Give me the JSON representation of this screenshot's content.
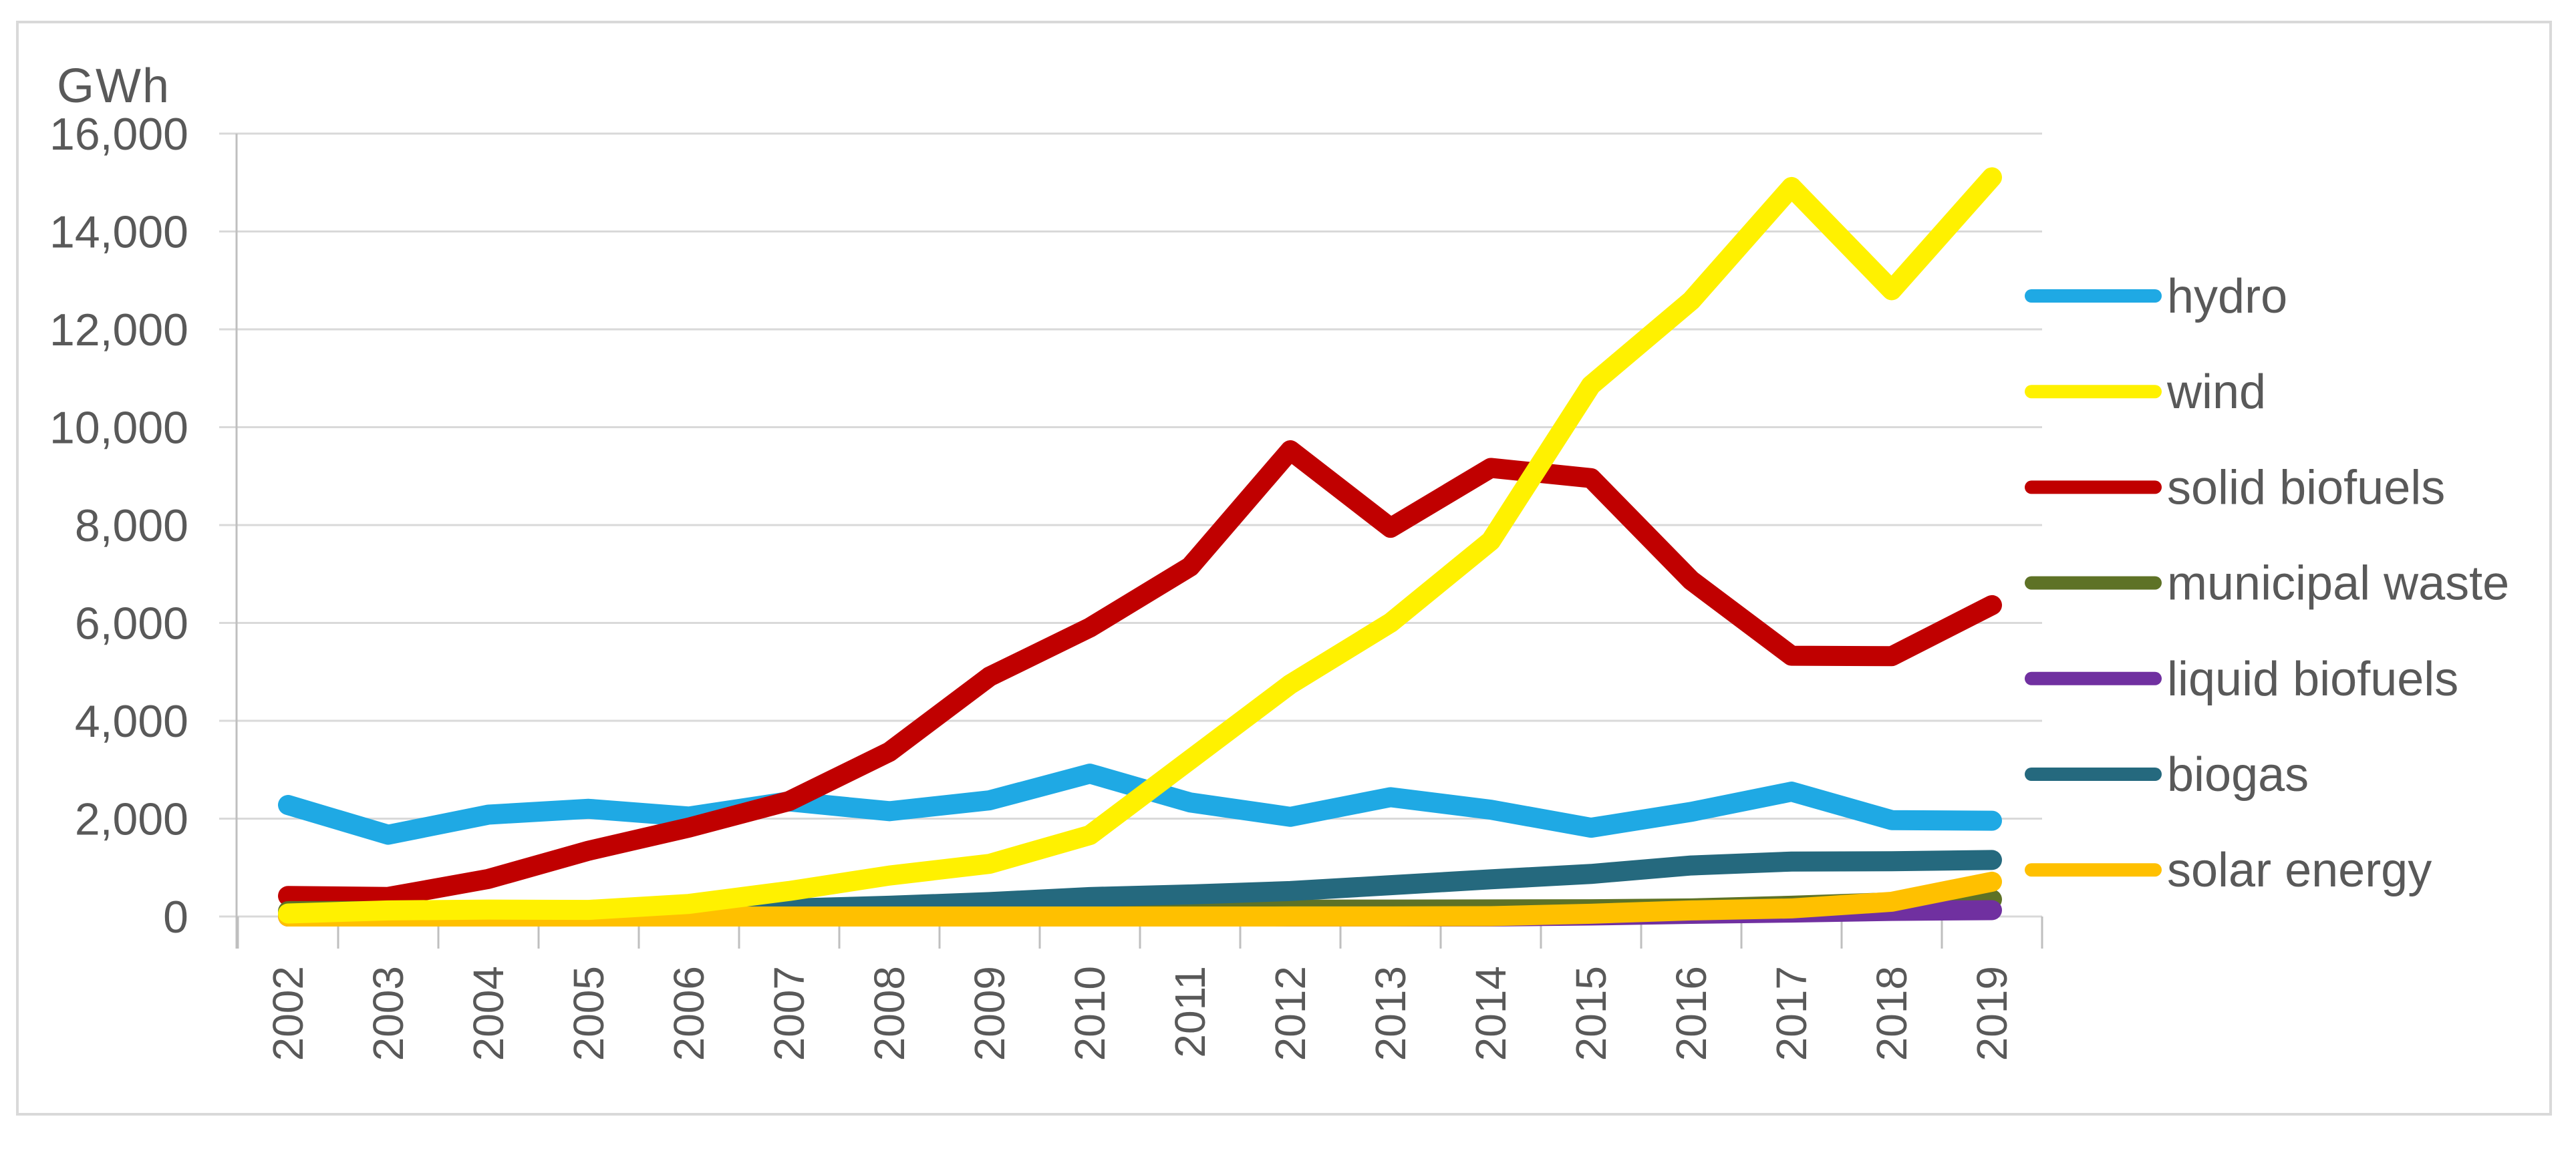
{
  "chart_data": {
    "type": "line",
    "title": "",
    "ylabel": "GWh",
    "xlabel": "",
    "x": [
      "2002",
      "2003",
      "2004",
      "2005",
      "2006",
      "2007",
      "2008",
      "2009",
      "2010",
      "2011",
      "2012",
      "2013",
      "2014",
      "2015",
      "2016",
      "2017",
      "2018",
      "2019"
    ],
    "y_axis": {
      "min": 0,
      "max": 16000,
      "step": 2000,
      "tick_labels": [
        "0",
        "2,000",
        "4,000",
        "6,000",
        "8,000",
        "10,000",
        "12,000",
        "14,000",
        "16,000"
      ]
    },
    "grid": true,
    "legend_position": "right",
    "series": [
      {
        "name": "hydro",
        "color": "#1FA9E4",
        "values": [
          2279,
          1671,
          2082,
          2201,
          2043,
          2352,
          2152,
          2375,
          2920,
          2331,
          2037,
          2439,
          2182,
          1814,
          2139,
          2552,
          1970,
          1958
        ]
      },
      {
        "name": "wind",
        "color": "#FFF100",
        "values": [
          61,
          124,
          142,
          135,
          257,
          522,
          837,
          1077,
          1664,
          3205,
          4747,
          6004,
          7676,
          10858,
          12588,
          14909,
          12799,
          15107
        ]
      },
      {
        "name": "solid biofuels",
        "color": "#C00000",
        "values": [
          420,
          400,
          768,
          1345,
          1818,
          2360,
          3365,
          4904,
          5905,
          7149,
          9529,
          7943,
          9168,
          8959,
          6868,
          5330,
          5320,
          6363
        ]
      },
      {
        "name": "municipal waste",
        "color": "#5E7226",
        "values": [
          110,
          112,
          118,
          122,
          125,
          128,
          130,
          132,
          135,
          138,
          140,
          142,
          145,
          148,
          165,
          220,
          290,
          350
        ]
      },
      {
        "name": "liquid biofuels",
        "color": "#7030A0",
        "values": [
          0,
          0,
          0,
          0,
          0,
          0,
          0,
          0,
          0,
          0,
          0,
          0,
          0,
          20,
          55,
          80,
          115,
          130
        ]
      },
      {
        "name": "biogas",
        "color": "#25697E",
        "values": [
          59,
          72,
          82,
          111,
          117,
          162,
          220,
          295,
          398,
          451,
          520,
          640,
          760,
          870,
          1043,
          1123,
          1129,
          1155
        ]
      },
      {
        "name": "solar energy",
        "color": "#FFC000",
        "values": [
          0,
          0,
          0,
          0,
          0,
          0,
          0,
          0,
          0,
          0,
          1,
          2,
          7,
          57,
          124,
          165,
          301,
          711
        ]
      }
    ],
    "z_order": [
      0,
      2,
      3,
      4,
      5,
      6,
      1
    ]
  },
  "style": {
    "grid_color": "#D9D9D9",
    "axis_color": "#BFBFBF",
    "text_color": "#595959",
    "border_color": "#D9D9D9",
    "background": "#FFFFFF"
  }
}
